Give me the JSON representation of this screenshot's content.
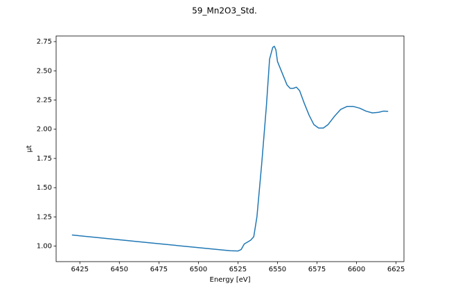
{
  "chart_data": {
    "type": "line",
    "title": "59_Mn2O3_Std.",
    "xlabel": "Energy [eV]",
    "ylabel": "μt",
    "color": "#1f77b4",
    "x": [
      6420,
      6470,
      6520,
      6525,
      6527,
      6529,
      6533,
      6535,
      6537,
      6540,
      6543,
      6545,
      6547,
      6548,
      6549,
      6550,
      6553,
      6556,
      6558,
      6560,
      6562,
      6564,
      6567,
      6570,
      6573,
      6576,
      6579,
      6582,
      6586,
      6590,
      6594,
      6598,
      6602,
      6606,
      6610,
      6614,
      6617,
      6620
    ],
    "values": [
      1.095,
      1.027,
      0.96,
      0.958,
      0.97,
      1.018,
      1.05,
      1.08,
      1.25,
      1.7,
      2.2,
      2.6,
      2.7,
      2.71,
      2.68,
      2.58,
      2.48,
      2.38,
      2.35,
      2.35,
      2.36,
      2.33,
      2.22,
      2.12,
      2.04,
      2.01,
      2.01,
      2.04,
      2.11,
      2.17,
      2.195,
      2.195,
      2.18,
      2.155,
      2.14,
      2.145,
      2.155,
      2.153
    ],
    "xlim": [
      6410,
      6630
    ],
    "ylim": [
      0.867,
      2.798
    ],
    "xticks": [
      6425,
      6450,
      6475,
      6500,
      6525,
      6550,
      6575,
      6600,
      6625
    ],
    "yticks": [
      {
        "value": 1,
        "label": "1.00"
      },
      {
        "value": 1.25,
        "label": "1.25"
      },
      {
        "value": 1.5,
        "label": "1.50"
      },
      {
        "value": 1.75,
        "label": "1.75"
      },
      {
        "value": 2,
        "label": "2.00"
      },
      {
        "value": 2.25,
        "label": "2.25"
      },
      {
        "value": 2.5,
        "label": "2.50"
      },
      {
        "value": 2.75,
        "label": "2.75"
      }
    ]
  }
}
